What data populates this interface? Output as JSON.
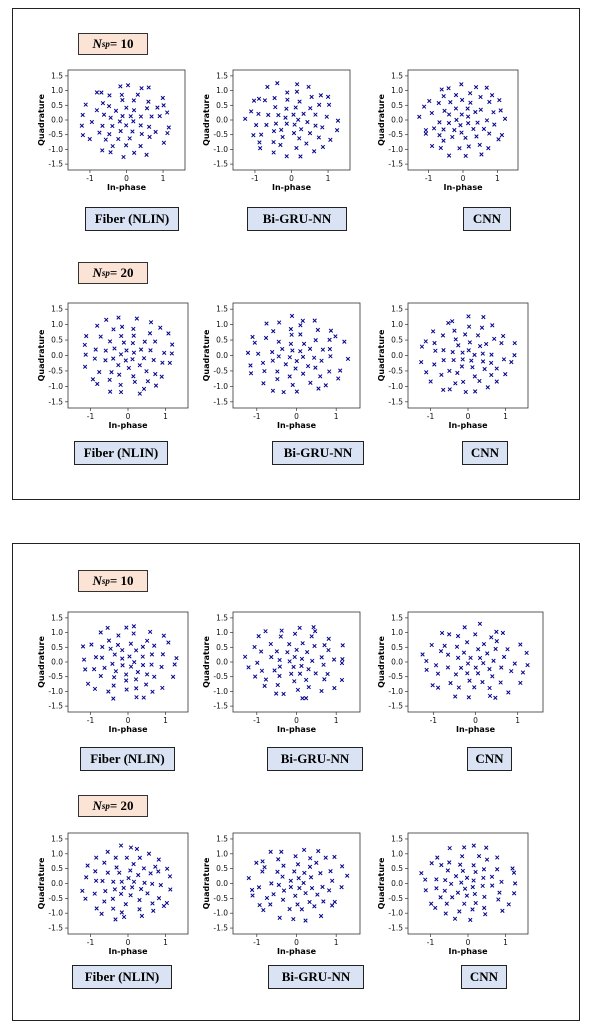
{
  "panels": [
    {
      "groups": [
        {
          "nsp_symbol": "N",
          "nsp_sub": "sp",
          "nsp_value": "= 10",
          "plots": [
            {
              "label": "Fiber (NLIN)",
              "seed": 11
            },
            {
              "label": "Bi-GRU-NN",
              "seed": 23
            },
            {
              "label": "CNN",
              "seed": 37
            }
          ]
        },
        {
          "nsp_symbol": "N",
          "nsp_sub": "sp",
          "nsp_value": "= 20",
          "plots": [
            {
              "label": "Fiber (NLIN)",
              "seed": 41
            },
            {
              "label": "Bi-GRU-NN",
              "seed": 53
            },
            {
              "label": "CNN",
              "seed": 67
            }
          ]
        }
      ]
    },
    {
      "groups": [
        {
          "nsp_symbol": "N",
          "nsp_sub": "sp",
          "nsp_value": "= 10",
          "plots": [
            {
              "label": "Fiber (NLIN)",
              "seed": 71
            },
            {
              "label": "Bi-GRU-NN",
              "seed": 83
            },
            {
              "label": "CNN",
              "seed": 97
            }
          ]
        },
        {
          "nsp_symbol": "N",
          "nsp_sub": "sp",
          "nsp_value": "= 20",
          "plots": [
            {
              "label": "Fiber (NLIN)",
              "seed": 101
            },
            {
              "label": "Bi-GRU-NN",
              "seed": 113
            },
            {
              "label": "CNN",
              "seed": 127
            }
          ]
        }
      ]
    }
  ],
  "chart_data": {
    "type": "scatter",
    "xlabel": "In-phase",
    "ylabel": "Quadrature",
    "xticks": [
      -1,
      0,
      1
    ],
    "yticks": [
      -1.5,
      -1.0,
      -0.5,
      0.0,
      0.5,
      1.0,
      1.5
    ],
    "ytick_labels": [
      "-1.5",
      "-1.0",
      "-0.5",
      "0.0",
      "0.5",
      "1.0",
      "1.5"
    ],
    "xlim": [
      -1.6,
      1.6
    ],
    "ylim": [
      -1.7,
      1.7
    ],
    "marker": "x",
    "marker_color": "#00008b",
    "note": "64-point constellation diagrams; points approximately on rings"
  }
}
